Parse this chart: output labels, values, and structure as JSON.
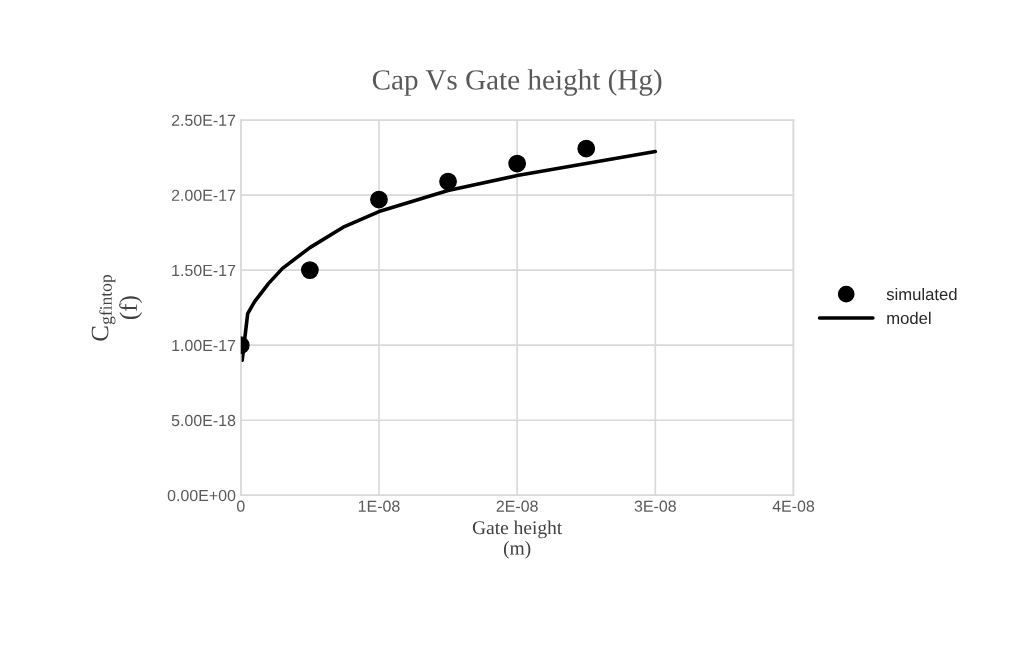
{
  "chart_data": {
    "type": "scatter",
    "title": "Cap Vs Gate height (Hg)",
    "xlabel": "Gate height\n(m)",
    "ylabel": "C$_{gfintop}$\n(f)",
    "series": [
      {
        "name": "simulated",
        "color": "#000000",
        "marker": "circle",
        "x": [
          0,
          5e-09,
          1e-08,
          1.5e-08,
          2e-08,
          2.5e-08
        ],
        "values": [
          1e-17,
          1.5e-17,
          1.97e-17,
          2.09e-17,
          2.21e-17,
          2.31e-17
        ]
      },
      {
        "name": "model",
        "type": "line",
        "color": "#000000",
        "marker": "none",
        "line_style": "solid",
        "x": [
          1e-10,
          5e-10,
          1e-09,
          2e-09,
          3e-09,
          5e-09,
          7.5e-09,
          1e-08,
          1.5e-08,
          2e-08,
          2.5e-08,
          3e-08
        ],
        "values": [
          9e-18,
          1.21e-17,
          1.29e-17,
          1.41e-17,
          1.51e-17,
          1.65e-17,
          1.79e-17,
          1.89e-17,
          2.03e-17,
          2.13e-17,
          2.21e-17,
          2.29e-17
        ]
      }
    ],
    "xlim": [
      0,
      4e-08
    ],
    "xticks": [
      0,
      {
        "value": 1e-08,
        "label": "1E-08"
      },
      {
        "value": 2e-08,
        "label": "2E-08"
      },
      {
        "value": 3e-08,
        "label": "3E-08"
      },
      {
        "value": 4e-08,
        "label": "4E-08"
      }
    ],
    "ylim": [
      0,
      2.5e-17
    ],
    "yticks": [
      {
        "value": 0,
        "label": "0.00E+00"
      },
      {
        "value": 5e-18,
        "label": "5.00E-18"
      },
      {
        "value": 1e-17,
        "label": "1.00E-17"
      },
      {
        "value": 1.5e-17,
        "label": "1.50E-17"
      },
      {
        "value": 2e-17,
        "label": "2.00E-17"
      },
      {
        "value": 2.5e-17,
        "label": "2.50E-17"
      }
    ],
    "grid": true,
    "legend": "right"
  }
}
